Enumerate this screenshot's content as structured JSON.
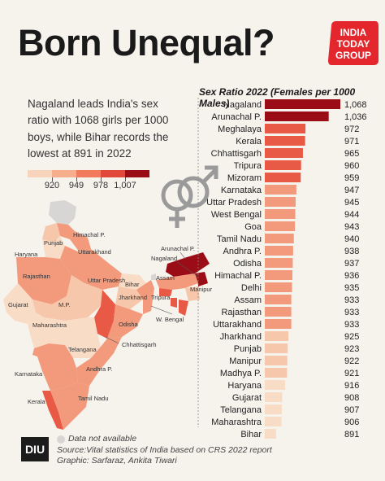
{
  "header": {
    "title": "Born Unequal?",
    "logo_lines": [
      "INDIA",
      "TODAY",
      "GROUP"
    ]
  },
  "subtitle": "Nagaland leads India's sex ratio with 1068 girls per 1000 boys, while Bihar records the lowest at 891 in 2022",
  "legend": {
    "ticks": [
      "920",
      "949",
      "978",
      "1,007"
    ],
    "colors": [
      "#f9d4bd",
      "#f6ae8d",
      "#f27b5e",
      "#e0493b",
      "#9b0d16"
    ]
  },
  "map": {
    "labels": [
      "Himachal P.",
      "Punjab",
      "Haryana",
      "Uttarakhand",
      "Rajasthan",
      "Uttar Pradesh",
      "Bihar",
      "Gujarat",
      "M.P.",
      "Jharkhand",
      "W. Bengal",
      "Maharashtra",
      "Odisha",
      "Chhattisgarh",
      "Telangana",
      "Andhra P.",
      "Karnataka",
      "Tamil Nadu",
      "Kerala",
      "Arunachal P.",
      "Nagaland",
      "Assam",
      "Manipur",
      "Tripura"
    ]
  },
  "chart_data": {
    "type": "bar",
    "title": "Sex Ratio 2022 (Females per 1000 Males)",
    "categories": [
      "Nagaland",
      "Arunachal P.",
      "Meghalaya",
      "Kerala",
      "Chhattisgarh",
      "Tripura",
      "Mizoram",
      "Karnataka",
      "Uttar Pradesh",
      "West Bengal",
      "Goa",
      "Tamil Nadu",
      "Andhra P.",
      "Odisha",
      "Himachal P.",
      "Delhi",
      "Assam",
      "Rajasthan",
      "Uttarakhand",
      "Jharkhand",
      "Punjab",
      "Manipur",
      "Madhya P.",
      "Haryana",
      "Gujarat",
      "Telangana",
      "Maharashtra",
      "Bihar"
    ],
    "values": [
      1068,
      1036,
      972,
      971,
      965,
      960,
      959,
      947,
      945,
      944,
      943,
      940,
      938,
      937,
      936,
      935,
      933,
      933,
      933,
      925,
      923,
      922,
      921,
      916,
      908,
      907,
      906,
      891
    ],
    "value_labels": [
      "1,068",
      "1,036",
      "972",
      "971",
      "965",
      "960",
      "959",
      "947",
      "945",
      "944",
      "943",
      "940",
      "938",
      "937",
      "936",
      "935",
      "933",
      "933",
      "933",
      "925",
      "923",
      "922",
      "921",
      "916",
      "908",
      "907",
      "906",
      "891"
    ],
    "colors": {
      "dark": "#9b0d16",
      "red": "#e85a45",
      "mid": "#f29a7b",
      "light": "#f6c7aa",
      "pale": "#f8dcc6"
    }
  },
  "footer": {
    "badge": "DIU",
    "data_na": "Data not available",
    "source": "Source:Vital statistics of India based on CRS 2022 report",
    "graphic": "Graphic: Sarfaraz, Ankita Tiwari"
  }
}
